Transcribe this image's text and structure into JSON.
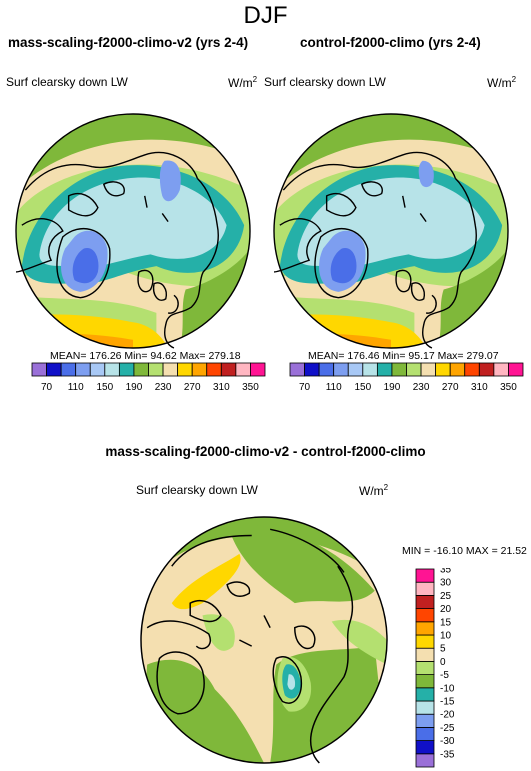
{
  "figure": {
    "title": "DJF",
    "diff_title": "mass-scaling-f2000-climo-v2 - control-f2000-climo"
  },
  "panels": [
    {
      "title": "mass-scaling-f2000-climo-v2 (yrs 2-4)",
      "variable": "Surf clearsky down LW",
      "units": "W/m",
      "units_exp": "2",
      "stats": "MEAN= 176.26  Min=  94.62  Max= 279.18"
    },
    {
      "title": "control-f2000-climo (yrs 2-4)",
      "variable": "Surf clearsky down LW",
      "units": "W/m",
      "units_exp": "2",
      "stats": "MEAN= 176.46  Min=  95.17  Max= 279.07"
    },
    {
      "variable": "Surf clearsky down LW",
      "units": "W/m",
      "units_exp": "2",
      "stats": "MIN = -16.10 MAX =  21.52"
    }
  ],
  "chart_data": [
    {
      "type": "heatmap",
      "title": "mass-scaling-f2000-climo-v2 (yrs 2-4)",
      "projection": "north-polar-stereographic",
      "units": "W/m2",
      "mean": 176.26,
      "min": 94.62,
      "max": 279.18,
      "levels": [
        70,
        90,
        110,
        130,
        150,
        170,
        190,
        210,
        230,
        250,
        270,
        290,
        310,
        330,
        350
      ],
      "tick_labels": [
        "70",
        "110",
        "150",
        "190",
        "230",
        "270",
        "310",
        "350"
      ],
      "colors": [
        "#9a70d8",
        "#1010c8",
        "#4a6ee8",
        "#7d9ef0",
        "#a8c8f5",
        "#b7e3e8",
        "#25b0a8",
        "#7fb83a",
        "#b4e070",
        "#f4dfb0",
        "#ffd700",
        "#ffa500",
        "#ff4500",
        "#c02020",
        "#ffb6c1",
        "#ff1493"
      ]
    },
    {
      "type": "heatmap",
      "title": "control-f2000-climo (yrs 2-4)",
      "projection": "north-polar-stereographic",
      "units": "W/m2",
      "mean": 176.46,
      "min": 95.17,
      "max": 279.07,
      "levels": [
        70,
        90,
        110,
        130,
        150,
        170,
        190,
        210,
        230,
        250,
        270,
        290,
        310,
        330,
        350
      ],
      "tick_labels": [
        "70",
        "110",
        "150",
        "190",
        "230",
        "270",
        "310",
        "350"
      ],
      "colors": [
        "#9a70d8",
        "#1010c8",
        "#4a6ee8",
        "#7d9ef0",
        "#a8c8f5",
        "#b7e3e8",
        "#25b0a8",
        "#7fb83a",
        "#b4e070",
        "#f4dfb0",
        "#ffd700",
        "#ffa500",
        "#ff4500",
        "#c02020",
        "#ffb6c1",
        "#ff1493"
      ]
    },
    {
      "type": "heatmap",
      "title": "mass-scaling-f2000-climo-v2 - control-f2000-climo",
      "projection": "north-polar-stereographic",
      "units": "W/m2",
      "min": -16.1,
      "max": 21.52,
      "levels": [
        -35,
        -30,
        -25,
        -20,
        -15,
        -10,
        -5,
        0,
        5,
        10,
        15,
        20,
        25,
        30,
        35
      ],
      "tick_labels": [
        "-35",
        "-30",
        "-25",
        "-20",
        "-15",
        "-10",
        "-5",
        "0",
        "5",
        "10",
        "15",
        "20",
        "25",
        "30",
        "35"
      ],
      "colors": [
        "#9a70d8",
        "#1010c8",
        "#4a6ee8",
        "#7d9ef0",
        "#b7e3e8",
        "#25b0a8",
        "#7fb83a",
        "#b4e070",
        "#f4dfb0",
        "#ffd700",
        "#ffa500",
        "#ff4500",
        "#c02020",
        "#ffb6c1",
        "#ff1493"
      ]
    }
  ]
}
